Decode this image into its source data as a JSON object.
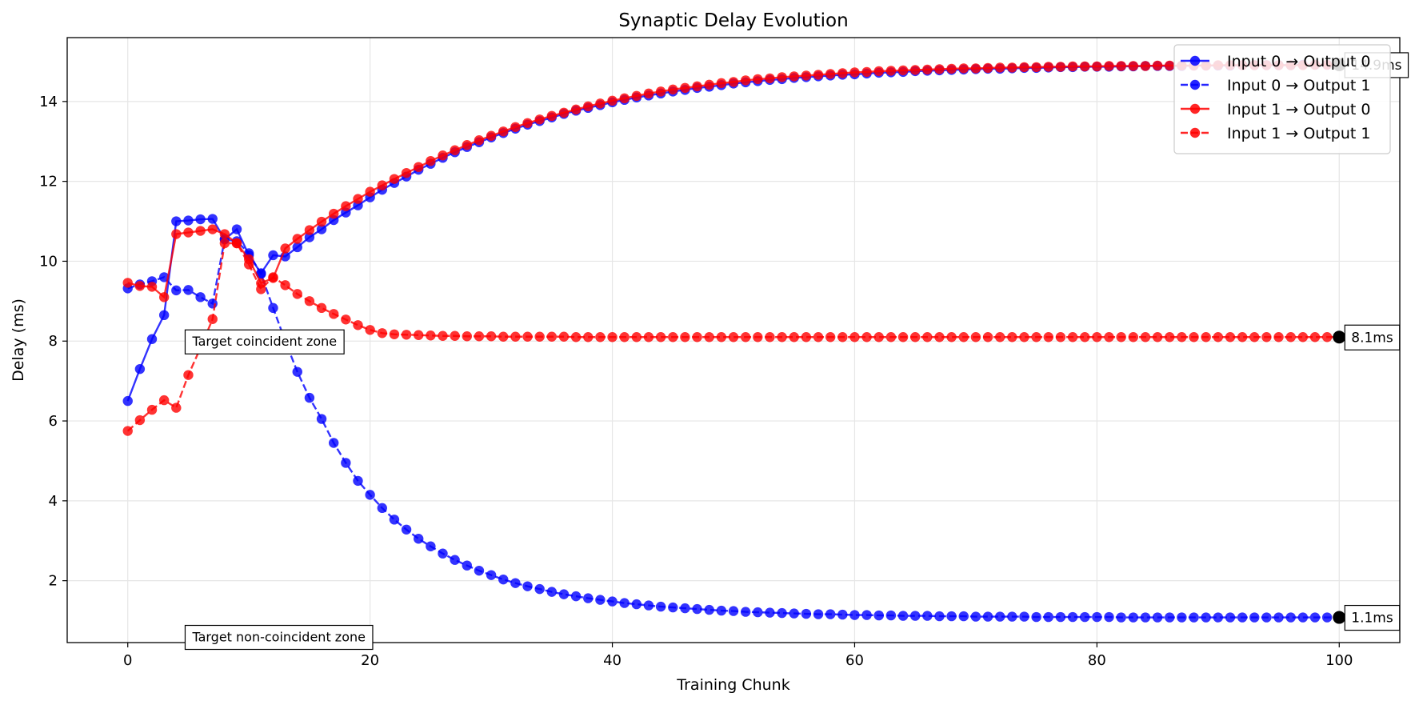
{
  "chart_data": {
    "type": "line",
    "title": "Synaptic Delay Evolution",
    "xlabel": "Training Chunk",
    "ylabel": "Delay (ms)",
    "xlim": [
      -5,
      105
    ],
    "ylim": [
      0.45,
      15.6
    ],
    "xticks": [
      0,
      20,
      40,
      60,
      80,
      100
    ],
    "yticks": [
      2,
      4,
      6,
      8,
      10,
      12,
      14
    ],
    "grid": true,
    "legend_position": "top-right",
    "x": [
      0,
      1,
      2,
      3,
      4,
      5,
      6,
      7,
      8,
      9,
      10,
      11,
      12,
      13,
      14,
      15,
      16,
      17,
      18,
      19,
      20,
      21,
      22,
      23,
      24,
      25,
      26,
      27,
      28,
      29,
      30,
      31,
      32,
      33,
      34,
      35,
      36,
      37,
      38,
      39,
      40,
      41,
      42,
      43,
      44,
      45,
      46,
      47,
      48,
      49,
      50,
      51,
      52,
      53,
      54,
      55,
      56,
      57,
      58,
      59,
      60,
      61,
      62,
      63,
      64,
      65,
      66,
      67,
      68,
      69,
      70,
      71,
      72,
      73,
      74,
      75,
      76,
      77,
      78,
      79,
      80,
      81,
      82,
      83,
      84,
      85,
      86,
      87,
      88,
      89,
      90,
      91,
      92,
      93,
      94,
      95,
      96,
      97,
      98,
      99,
      100
    ],
    "series": [
      {
        "name": "Input 0 → Output 0",
        "color": "#0000ff",
        "linestyle": "solid",
        "values": [
          6.5,
          7.3,
          8.05,
          8.65,
          11.0,
          11.02,
          11.05,
          11.06,
          10.55,
          10.8,
          10.15,
          9.7,
          10.15,
          10.12,
          10.35,
          10.6,
          10.8,
          11.03,
          11.22,
          11.4,
          11.6,
          11.79,
          11.96,
          12.12,
          12.29,
          12.44,
          12.59,
          12.73,
          12.86,
          12.98,
          13.1,
          13.21,
          13.32,
          13.42,
          13.51,
          13.6,
          13.69,
          13.77,
          13.84,
          13.91,
          13.98,
          14.04,
          14.1,
          14.15,
          14.2,
          14.25,
          14.29,
          14.34,
          14.37,
          14.41,
          14.45,
          14.48,
          14.51,
          14.54,
          14.56,
          14.59,
          14.61,
          14.63,
          14.65,
          14.67,
          14.68,
          14.7,
          14.72,
          14.73,
          14.74,
          14.76,
          14.77,
          14.78,
          14.79,
          14.8,
          14.81,
          14.82,
          14.82,
          14.83,
          14.84,
          14.84,
          14.85,
          14.86,
          14.86,
          14.87,
          14.87,
          14.87,
          14.88,
          14.88,
          14.89,
          14.89,
          14.89,
          14.89,
          14.9,
          14.9,
          14.9,
          14.9,
          14.91,
          14.91,
          14.91,
          14.91,
          14.91,
          14.92,
          14.92,
          14.92,
          14.92
        ]
      },
      {
        "name": "Input 0 → Output 1",
        "color": "#0000ff",
        "linestyle": "dashed",
        "values": [
          9.32,
          9.42,
          9.5,
          9.6,
          9.27,
          9.28,
          9.1,
          8.94,
          10.55,
          10.5,
          10.2,
          9.68,
          8.83,
          8.0,
          7.23,
          6.58,
          6.05,
          5.45,
          4.95,
          4.5,
          4.15,
          3.82,
          3.53,
          3.28,
          3.05,
          2.86,
          2.68,
          2.52,
          2.38,
          2.25,
          2.14,
          2.03,
          1.94,
          1.86,
          1.79,
          1.72,
          1.66,
          1.61,
          1.56,
          1.52,
          1.48,
          1.44,
          1.41,
          1.38,
          1.35,
          1.33,
          1.31,
          1.29,
          1.27,
          1.25,
          1.24,
          1.22,
          1.21,
          1.2,
          1.19,
          1.18,
          1.17,
          1.16,
          1.16,
          1.15,
          1.14,
          1.14,
          1.13,
          1.13,
          1.12,
          1.12,
          1.12,
          1.11,
          1.11,
          1.11,
          1.1,
          1.1,
          1.1,
          1.1,
          1.1,
          1.09,
          1.09,
          1.09,
          1.09,
          1.09,
          1.09,
          1.09,
          1.08,
          1.08,
          1.08,
          1.08,
          1.08,
          1.08,
          1.08,
          1.08,
          1.08,
          1.08,
          1.08,
          1.08,
          1.08,
          1.08,
          1.08,
          1.08,
          1.08,
          1.08,
          1.08
        ]
      },
      {
        "name": "Input 1 → Output 0",
        "color": "#ff0000",
        "linestyle": "solid",
        "values": [
          9.46,
          9.38,
          9.36,
          9.1,
          10.68,
          10.72,
          10.76,
          10.8,
          10.68,
          10.45,
          10.05,
          9.45,
          9.58,
          10.32,
          10.56,
          10.78,
          10.99,
          11.19,
          11.38,
          11.56,
          11.74,
          11.9,
          12.06,
          12.21,
          12.36,
          12.51,
          12.65,
          12.78,
          12.91,
          13.03,
          13.14,
          13.25,
          13.36,
          13.46,
          13.55,
          13.64,
          13.72,
          13.8,
          13.88,
          13.95,
          14.02,
          14.08,
          14.14,
          14.2,
          14.25,
          14.3,
          14.34,
          14.38,
          14.42,
          14.46,
          14.49,
          14.53,
          14.56,
          14.58,
          14.61,
          14.63,
          14.65,
          14.67,
          14.69,
          14.71,
          14.73,
          14.74,
          14.76,
          14.77,
          14.78,
          14.79,
          14.8,
          14.81,
          14.82,
          14.83,
          14.83,
          14.84,
          14.85,
          14.85,
          14.86,
          14.86,
          14.87,
          14.87,
          14.88,
          14.88,
          14.88,
          14.89,
          14.89,
          14.89,
          14.89,
          14.9,
          14.9,
          14.9,
          14.9,
          14.9,
          14.91,
          14.91,
          14.91,
          14.91,
          14.91,
          14.91,
          14.91,
          14.91,
          14.92,
          14.92,
          14.92
        ]
      },
      {
        "name": "Input 1 → Output 1",
        "color": "#ff0000",
        "linestyle": "dashed",
        "values": [
          5.75,
          6.02,
          6.28,
          6.52,
          6.33,
          7.15,
          7.83,
          8.55,
          10.45,
          10.45,
          9.92,
          9.3,
          9.6,
          9.4,
          9.18,
          9.0,
          8.83,
          8.68,
          8.54,
          8.4,
          8.28,
          8.2,
          8.17,
          8.16,
          8.15,
          8.14,
          8.13,
          8.13,
          8.12,
          8.12,
          8.12,
          8.11,
          8.11,
          8.11,
          8.11,
          8.11,
          8.11,
          8.1,
          8.1,
          8.1,
          8.1,
          8.1,
          8.1,
          8.1,
          8.1,
          8.1,
          8.1,
          8.1,
          8.1,
          8.1,
          8.1,
          8.1,
          8.1,
          8.1,
          8.1,
          8.1,
          8.1,
          8.1,
          8.1,
          8.1,
          8.1,
          8.1,
          8.1,
          8.1,
          8.1,
          8.1,
          8.1,
          8.1,
          8.1,
          8.1,
          8.1,
          8.1,
          8.1,
          8.1,
          8.1,
          8.1,
          8.1,
          8.1,
          8.1,
          8.1,
          8.1,
          8.1,
          8.1,
          8.1,
          8.1,
          8.1,
          8.1,
          8.1,
          8.1,
          8.1,
          8.1,
          8.1,
          8.1,
          8.1,
          8.1,
          8.1,
          8.1,
          8.1,
          8.1,
          8.1,
          8.1
        ]
      }
    ],
    "annotations": [
      {
        "text": "Target coincident zone",
        "x": 5,
        "y": 8.0
      },
      {
        "text": "Target non-coincident zone",
        "x": 5,
        "y": 0.6
      }
    ],
    "end_markers": [
      {
        "text": "14.9ms",
        "x": 100,
        "y": 14.92
      },
      {
        "text": "8.1ms",
        "x": 100,
        "y": 8.1
      },
      {
        "text": "1.1ms",
        "x": 100,
        "y": 1.08
      }
    ]
  }
}
